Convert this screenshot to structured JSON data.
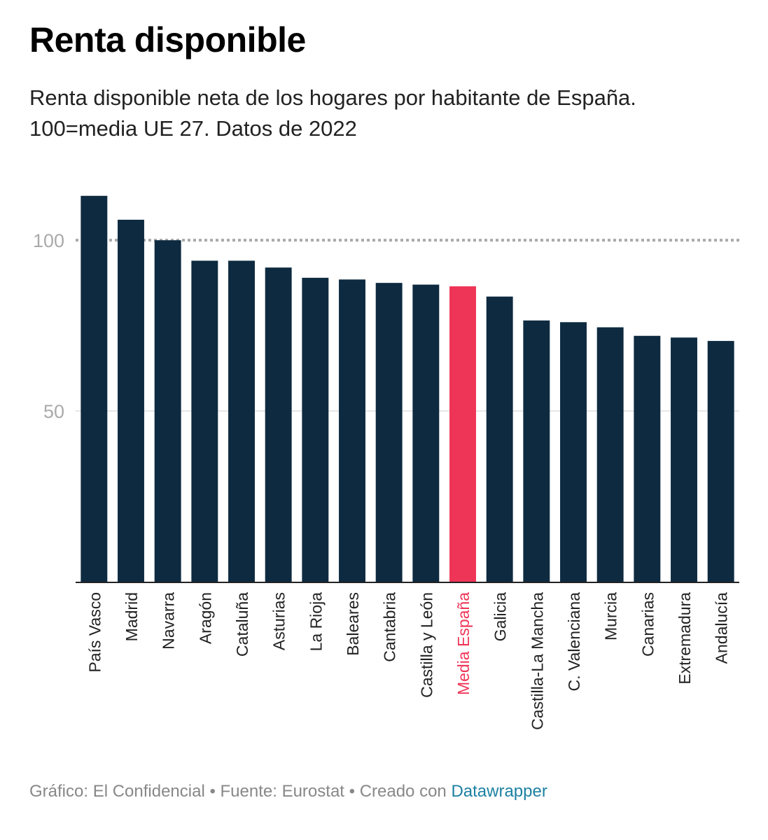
{
  "chart_data": {
    "type": "bar",
    "title": "Renta disponible",
    "subtitle_line1": "Renta disponible neta de los hogares por habitante de España.",
    "subtitle_line2": "100=media UE 27. Datos de 2022",
    "categories": [
      "País Vasco",
      "Madrid",
      "Navarra",
      "Aragón",
      "Cataluña",
      "Asturias",
      "La Rioja",
      "Baleares",
      "Cantabria",
      "Castilla y León",
      "Media España",
      "Galicia",
      "Castilla-La Mancha",
      "C. Valenciana",
      "Murcia",
      "Canarias",
      "Extremadura",
      "Andalucía"
    ],
    "values": [
      113,
      106,
      100,
      94,
      94,
      92,
      89,
      88.5,
      87.5,
      87,
      86.5,
      83.5,
      76.5,
      76,
      74.5,
      72,
      71.5,
      70.5
    ],
    "highlight": "Media España",
    "ylim": [
      0,
      115
    ],
    "yticks": [
      50,
      100
    ],
    "reference_line": 100,
    "xlabel": "",
    "ylabel": "",
    "colors": {
      "bar": "#0d2a40",
      "highlight": "#ef3557",
      "reference": "#aaaaaa",
      "grid": "#e6e6e6",
      "tick": "#aaaaaa"
    }
  },
  "footer": {
    "credits": "Gráfico: El Confidencial • Fuente: Eurostat • Creado con ",
    "link": "Datawrapper"
  }
}
